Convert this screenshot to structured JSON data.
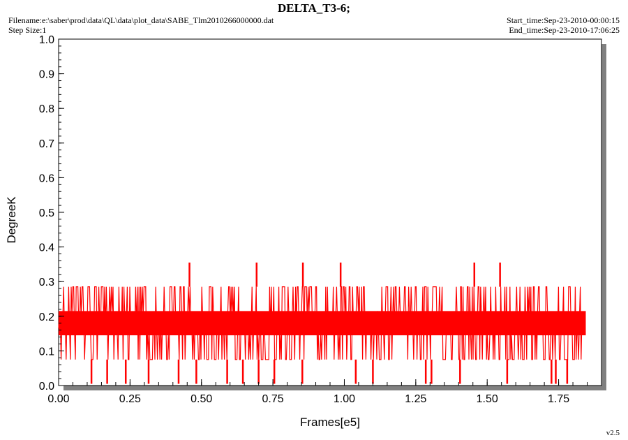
{
  "header": {
    "title": "DELTA_T3-6;",
    "filename_label": "Filename:",
    "filename_value": "e:\\saber\\prod\\data\\QL\\data\\plot_data\\SABE_Tlm2010266000000.dat",
    "step_label": "Step Size:",
    "step_value": "1",
    "start_label": "Start_time:",
    "start_value": "Sep-23-2010-00:00:15",
    "end_label": "End_time:",
    "end_value": "Sep-23-2010-17:06:25"
  },
  "footer": {
    "version": "v2.5"
  },
  "colors": {
    "series": "#ff0000",
    "shadow": "#808080"
  },
  "chart_data": {
    "type": "line",
    "xlabel": "Frames[e5]",
    "ylabel": "DegreeK",
    "xlim": [
      0,
      1.9
    ],
    "ylim": [
      0,
      1.0
    ],
    "x_ticks": [
      "0.00",
      "0.25",
      "0.50",
      "0.75",
      "1.00",
      "1.25",
      "1.50",
      "1.75"
    ],
    "y_ticks": [
      "0.0",
      "0.1",
      "0.2",
      "0.3",
      "0.4",
      "0.5",
      "0.6",
      "0.7",
      "0.8",
      "0.9",
      "1.0"
    ],
    "grid": false,
    "series": [
      {
        "color": "#ff0000",
        "x_range": [
          0,
          1.845
        ],
        "band_low": 0.075,
        "band_high": 0.285,
        "core_low": 0.145,
        "core_high": 0.215,
        "spikes": [
          {
            "x": 0.458,
            "y": 0.355
          },
          {
            "x": 0.693,
            "y": 0.355
          },
          {
            "x": 0.855,
            "y": 0.355
          },
          {
            "x": 0.987,
            "y": 0.355
          },
          {
            "x": 1.455,
            "y": 0.355
          },
          {
            "x": 1.545,
            "y": 0.355
          }
        ],
        "dips": [
          {
            "x": 0.115,
            "y": 0.005
          },
          {
            "x": 0.17,
            "y": 0.005
          },
          {
            "x": 0.235,
            "y": 0.005
          },
          {
            "x": 0.315,
            "y": 0.005
          },
          {
            "x": 0.42,
            "y": 0.005
          },
          {
            "x": 0.482,
            "y": 0.005
          },
          {
            "x": 0.59,
            "y": 0.005
          },
          {
            "x": 0.645,
            "y": 0.005
          },
          {
            "x": 0.7,
            "y": 0.005
          },
          {
            "x": 0.755,
            "y": 0.005
          },
          {
            "x": 0.853,
            "y": 0.005
          },
          {
            "x": 1.04,
            "y": 0.005
          },
          {
            "x": 1.1,
            "y": 0.005
          },
          {
            "x": 1.285,
            "y": 0.005
          },
          {
            "x": 1.305,
            "y": 0.005
          },
          {
            "x": 1.405,
            "y": 0.005
          },
          {
            "x": 1.57,
            "y": 0.005
          },
          {
            "x": 1.725,
            "y": 0.005
          },
          {
            "x": 1.74,
            "y": 0.005
          },
          {
            "x": 1.78,
            "y": 0.005
          }
        ]
      }
    ]
  }
}
